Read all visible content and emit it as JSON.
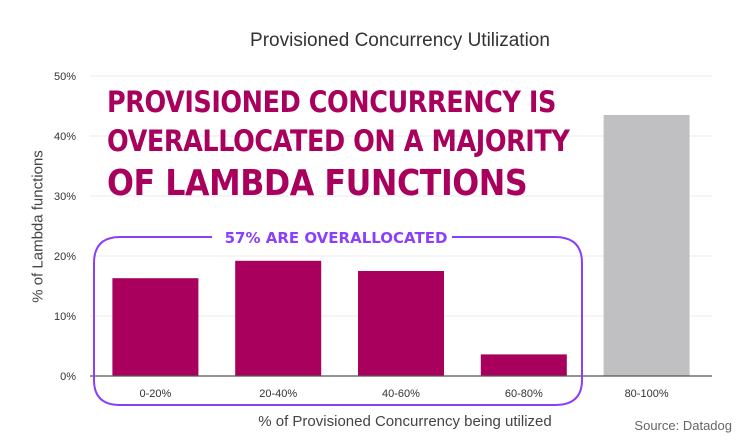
{
  "chart_data": {
    "type": "bar",
    "title": "Provisioned Concurrency Utilization",
    "xlabel": "% of Provisioned Concurrency being utilized",
    "ylabel": "% of Lambda functions",
    "categories": [
      "0-20%",
      "20-40%",
      "40-60%",
      "60-80%",
      "80-100%"
    ],
    "values": [
      16.3,
      19.2,
      17.5,
      3.6,
      43.5
    ],
    "ylim": [
      0,
      50
    ],
    "yticks": [
      "0%",
      "10%",
      "20%",
      "30%",
      "40%",
      "50%"
    ],
    "grid": true,
    "bar_colors": [
      "#a8005c",
      "#a8005c",
      "#a8005c",
      "#a8005c",
      "#c0c0c2"
    ],
    "annotations": {
      "headline": [
        "PROVISIONED CONCURRENCY IS",
        "OVERALLOCATED ON A MAJORITY",
        "OF LAMBDA FUNCTIONS"
      ],
      "bracket_label": "57% ARE OVERALLOCATED",
      "bracket_color": "#8a3ffc",
      "headline_color": "#a8005c"
    },
    "source": "Source: Datadog"
  }
}
